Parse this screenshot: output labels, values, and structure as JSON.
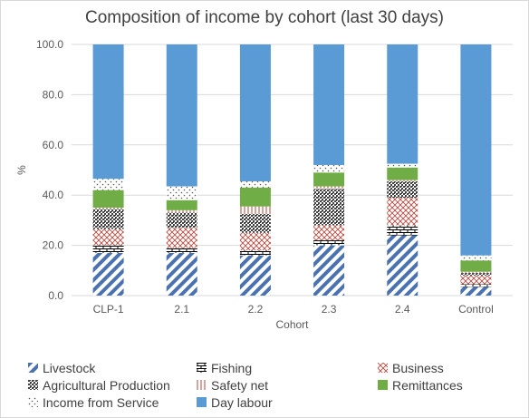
{
  "chart_data": {
    "type": "bar",
    "stacked": true,
    "title": "Composition of income by cohort (last 30 days)",
    "xlabel": "Cohort",
    "ylabel": "%",
    "ylim": [
      0,
      100
    ],
    "yticks": [
      "0.0",
      "20.0",
      "40.0",
      "60.0",
      "80.0",
      "100.0"
    ],
    "grid": true,
    "legend_position": "bottom",
    "categories": [
      "CLP-1",
      "2.1",
      "2.2",
      "2.3",
      "2.4",
      "Control"
    ],
    "series": [
      {
        "name": "Livestock",
        "pattern": "diagonal",
        "color": "#4a72b0",
        "values": [
          17.0,
          17.0,
          16.0,
          20.0,
          24.0,
          3.5
        ]
      },
      {
        "name": "Fishing",
        "pattern": "brick",
        "color": "#000000",
        "values": [
          3.0,
          2.0,
          2.0,
          2.0,
          4.0,
          1.0
        ]
      },
      {
        "name": "Business",
        "pattern": "diamond",
        "color": "#b24a3f",
        "values": [
          6.5,
          8.0,
          7.0,
          6.0,
          11.0,
          3.5
        ]
      },
      {
        "name": "Agricultural Production",
        "pattern": "dense",
        "color": "#404040",
        "values": [
          8.0,
          6.0,
          7.5,
          14.5,
          6.5,
          1.0
        ]
      },
      {
        "name": "Safety net",
        "pattern": "vertical",
        "color": "#b24a3f",
        "values": [
          0.5,
          1.0,
          3.0,
          1.0,
          0.5,
          0.5
        ]
      },
      {
        "name": "Remittances",
        "pattern": "solid",
        "color": "#70ad47",
        "values": [
          7.0,
          4.0,
          7.5,
          5.5,
          5.0,
          4.5
        ]
      },
      {
        "name": "Income from Service",
        "pattern": "dots",
        "color": "#595959",
        "values": [
          4.5,
          5.5,
          2.5,
          3.0,
          1.5,
          2.0
        ]
      },
      {
        "name": "Day labour",
        "pattern": "solid",
        "color": "#5b9bd5",
        "values": [
          53.5,
          56.5,
          54.5,
          48.0,
          47.5,
          84.0
        ]
      }
    ]
  }
}
